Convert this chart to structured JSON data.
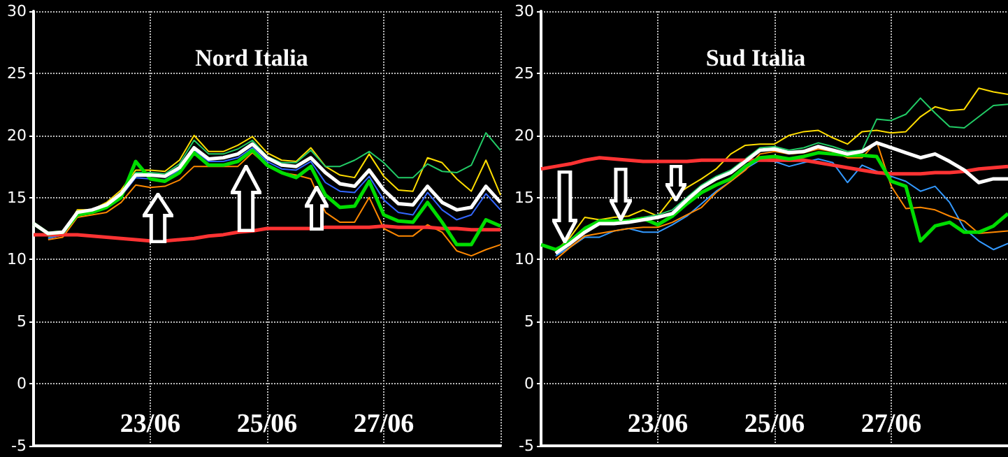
{
  "chart_data": [
    {
      "type": "line",
      "title": "Nord Italia",
      "marker": "none",
      "grid": true,
      "x": [
        "--06-21T00:00",
        "--06-21T06:00",
        "--06-21T12:00",
        "--06-21T18:00",
        "--06-22T00:00",
        "--06-22T06:00",
        "--06-22T12:00",
        "--06-22T18:00",
        "--06-23T00:00",
        "--06-23T06:00",
        "--06-23T12:00",
        "--06-23T18:00",
        "--06-24T00:00",
        "--06-24T06:00",
        "--06-24T12:00",
        "--06-24T18:00",
        "--06-25T00:00",
        "--06-25T06:00",
        "--06-25T12:00",
        "--06-25T18:00",
        "--06-26T00:00",
        "--06-26T06:00",
        "--06-26T12:00",
        "--06-26T18:00",
        "--06-27T00:00",
        "--06-27T06:00",
        "--06-27T12:00",
        "--06-27T18:00",
        "--06-28T00:00",
        "--06-28T06:00",
        "--06-28T12:00",
        "--06-28T18:00",
        "--06-29T00:00"
      ],
      "xlim": [
        "--06-21",
        "--06-29"
      ],
      "xticks": [
        {
          "value": "--06-23",
          "label": "23/06"
        },
        {
          "value": "--06-25",
          "label": "25/06"
        },
        {
          "value": "--06-27",
          "label": "27/06"
        }
      ],
      "ylim": [
        -5,
        30
      ],
      "yticks": [
        -5,
        0,
        5,
        10,
        15,
        20,
        25,
        30
      ],
      "series": [
        {
          "color": "#ff3333",
          "values": [
            12.0,
            12.0,
            12.0,
            12.0,
            11.9,
            11.8,
            11.7,
            11.6,
            11.5,
            11.5,
            11.6,
            11.7,
            11.9,
            12.0,
            12.2,
            12.3,
            12.5,
            12.5,
            12.5,
            12.5,
            12.6,
            12.6,
            12.6,
            12.6,
            12.7,
            12.6,
            12.6,
            12.6,
            12.5,
            12.5,
            12.4,
            12.4,
            12.4
          ]
        },
        {
          "color": "#00dd00",
          "values": [
            12.9,
            12.1,
            12.2,
            13.6,
            13.8,
            14.2,
            15.0,
            17.9,
            16.5,
            16.3,
            17.0,
            18.6,
            17.6,
            17.6,
            17.9,
            18.8,
            17.6,
            17.0,
            16.6,
            17.5,
            15.2,
            14.2,
            14.3,
            16.3,
            13.6,
            13.1,
            13.0,
            14.6,
            13.0,
            11.2,
            11.2,
            13.2,
            12.7
          ]
        },
        {
          "color": "#ffdd00",
          "values": [
            null,
            11.7,
            12.0,
            14.0,
            14.0,
            14.6,
            15.6,
            17.2,
            17.2,
            17.1,
            18.0,
            20.0,
            18.7,
            18.7,
            19.2,
            19.9,
            18.6,
            18.0,
            17.9,
            19.0,
            17.5,
            16.8,
            16.6,
            18.5,
            16.7,
            15.6,
            15.5,
            18.2,
            17.8,
            16.5,
            15.5,
            18.0,
            15.2
          ]
        },
        {
          "color": "#ff8800",
          "values": [
            null,
            11.6,
            11.8,
            13.4,
            13.6,
            13.8,
            14.6,
            16.0,
            15.8,
            15.9,
            16.4,
            17.5,
            17.5,
            17.5,
            17.5,
            18.6,
            17.6,
            17.0,
            16.8,
            16.5,
            13.8,
            13.0,
            13.0,
            15.0,
            12.5,
            11.9,
            11.9,
            12.8,
            12.2,
            10.7,
            10.3,
            10.8,
            11.2
          ]
        },
        {
          "color": "#22cc66",
          "values": [
            null,
            11.8,
            12.1,
            13.9,
            13.9,
            14.4,
            15.4,
            17.0,
            17.0,
            16.9,
            17.7,
            19.6,
            18.5,
            18.5,
            18.9,
            19.6,
            18.3,
            17.8,
            17.8,
            18.8,
            17.5,
            17.5,
            18.0,
            18.7,
            17.8,
            16.6,
            16.6,
            17.7,
            17.1,
            17.0,
            17.6,
            20.2,
            18.8
          ]
        },
        {
          "color": "#3366ff",
          "values": [
            null,
            11.7,
            12.0,
            13.7,
            13.9,
            14.2,
            15.1,
            16.6,
            16.5,
            16.4,
            17.2,
            18.8,
            17.9,
            17.9,
            18.2,
            19.0,
            17.9,
            17.3,
            17.2,
            17.9,
            16.2,
            15.5,
            15.4,
            16.7,
            14.8,
            13.8,
            13.6,
            15.4,
            14.0,
            13.2,
            13.6,
            15.3,
            14.0
          ]
        },
        {
          "color": "#ffffff",
          "values": [
            12.9,
            12.1,
            12.2,
            13.8,
            14.0,
            14.4,
            15.3,
            16.8,
            16.8,
            16.7,
            17.4,
            19.0,
            18.1,
            18.2,
            18.5,
            19.3,
            18.2,
            17.6,
            17.5,
            18.2,
            17.0,
            16.1,
            15.9,
            17.2,
            15.6,
            14.5,
            14.4,
            15.9,
            14.6,
            14.0,
            14.2,
            15.9,
            14.6
          ]
        }
      ]
    },
    {
      "type": "line",
      "title": "Sud Italia",
      "marker": "none",
      "grid": true,
      "x": [
        "--06-21T00:00",
        "--06-21T06:00",
        "--06-21T12:00",
        "--06-21T18:00",
        "--06-22T00:00",
        "--06-22T06:00",
        "--06-22T12:00",
        "--06-22T18:00",
        "--06-23T00:00",
        "--06-23T06:00",
        "--06-23T12:00",
        "--06-23T18:00",
        "--06-24T00:00",
        "--06-24T06:00",
        "--06-24T12:00",
        "--06-24T18:00",
        "--06-25T00:00",
        "--06-25T06:00",
        "--06-25T12:00",
        "--06-25T18:00",
        "--06-26T00:00",
        "--06-26T06:00",
        "--06-26T12:00",
        "--06-26T18:00",
        "--06-27T00:00",
        "--06-27T06:00",
        "--06-27T12:00",
        "--06-27T18:00",
        "--06-28T00:00",
        "--06-28T06:00",
        "--06-28T12:00",
        "--06-28T18:00",
        "--06-29T00:00"
      ],
      "xlim": [
        "--06-21",
        "--06-29"
      ],
      "xticks": [
        {
          "value": "--06-23",
          "label": "23/06"
        },
        {
          "value": "--06-25",
          "label": "25/06"
        },
        {
          "value": "--06-27",
          "label": "27/06"
        }
      ],
      "ylim": [
        -5,
        30
      ],
      "yticks": [
        -5,
        0,
        5,
        10,
        15,
        20,
        25,
        30
      ],
      "series": [
        {
          "color": "#ff3333",
          "values": [
            17.3,
            17.5,
            17.7,
            18.0,
            18.2,
            18.1,
            18.0,
            17.9,
            17.9,
            17.9,
            17.9,
            18.0,
            18.0,
            18.0,
            18.0,
            18.0,
            18.0,
            18.0,
            18.0,
            17.8,
            17.6,
            17.4,
            17.2,
            17.0,
            16.9,
            16.9,
            16.9,
            17.0,
            17.0,
            17.1,
            17.3,
            17.4,
            17.5
          ]
        },
        {
          "color": "#00dd00",
          "values": [
            11.2,
            10.8,
            11.4,
            12.5,
            13.1,
            13.1,
            13.1,
            13.3,
            12.8,
            13.5,
            14.5,
            15.4,
            16.0,
            16.5,
            17.5,
            18.2,
            18.3,
            18.1,
            18.3,
            18.6,
            18.5,
            18.4,
            18.4,
            18.3,
            16.3,
            15.9,
            11.5,
            12.7,
            13.0,
            12.2,
            12.2,
            12.7,
            13.7
          ]
        },
        {
          "color": "#ffdd00",
          "values": [
            null,
            10.7,
            11.8,
            13.4,
            13.2,
            13.4,
            13.5,
            14.0,
            13.5,
            15.0,
            15.8,
            16.5,
            17.3,
            18.5,
            19.2,
            19.3,
            19.3,
            20.0,
            20.3,
            20.4,
            19.8,
            19.3,
            20.3,
            20.4,
            20.2,
            20.3,
            21.5,
            22.3,
            22.0,
            22.1,
            23.8,
            23.5,
            23.3
          ]
        },
        {
          "color": "#3399ff",
          "values": [
            null,
            10.3,
            11.0,
            11.8,
            11.8,
            12.3,
            12.5,
            12.2,
            12.2,
            12.8,
            13.5,
            14.5,
            15.5,
            16.3,
            17.3,
            18.0,
            17.9,
            17.5,
            17.8,
            18.1,
            17.8,
            16.2,
            17.6,
            17.1,
            16.7,
            16.3,
            15.5,
            15.9,
            14.6,
            12.5,
            11.5,
            10.8,
            11.3
          ]
        },
        {
          "color": "#ff8800",
          "values": [
            null,
            10.0,
            11.0,
            11.9,
            12.1,
            12.3,
            12.5,
            12.6,
            12.6,
            13.0,
            13.6,
            14.2,
            15.4,
            16.3,
            17.2,
            18.5,
            18.7,
            18.5,
            18.6,
            18.9,
            18.7,
            18.2,
            18.2,
            19.5,
            15.9,
            14.1,
            14.2,
            14.0,
            13.5,
            13.1,
            12.1,
            12.2,
            12.3
          ]
        },
        {
          "color": "#22cc66",
          "values": [
            null,
            10.8,
            11.6,
            12.6,
            13.1,
            13.1,
            13.2,
            13.4,
            13.6,
            14.0,
            15.0,
            16.0,
            16.7,
            17.2,
            18.1,
            19.0,
            19.1,
            18.8,
            19.0,
            19.4,
            19.1,
            18.7,
            18.8,
            21.3,
            21.2,
            21.7,
            23.0,
            21.8,
            20.7,
            20.6,
            21.5,
            22.4,
            22.5
          ]
        },
        {
          "color": "#ffffff",
          "values": [
            null,
            10.5,
            11.3,
            12.2,
            12.9,
            12.9,
            13.0,
            13.2,
            13.4,
            13.7,
            14.8,
            15.8,
            16.5,
            17.0,
            17.9,
            18.8,
            18.9,
            18.6,
            18.7,
            19.1,
            18.8,
            18.5,
            18.7,
            19.4,
            19.0,
            18.6,
            18.2,
            18.5,
            17.9,
            17.2,
            16.2,
            16.5,
            16.5
          ]
        }
      ]
    }
  ]
}
